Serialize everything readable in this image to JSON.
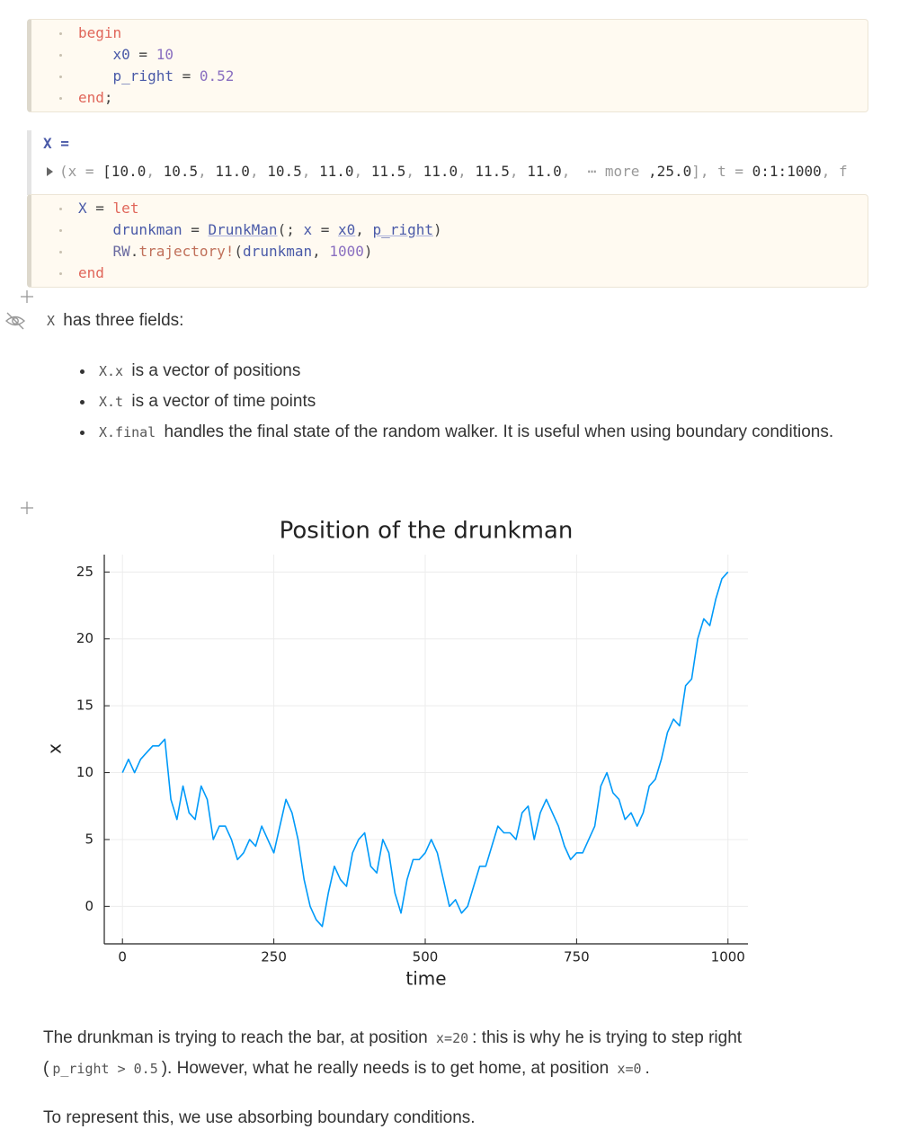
{
  "cells": [
    {
      "lines": [
        [
          {
            "text": "begin",
            "color": "#e0665a"
          }
        ],
        [
          {
            "text": "    x0",
            "color": "#4a5aa8"
          },
          {
            "text": " = "
          },
          {
            "text": "10",
            "color": "#8a6fc0"
          }
        ],
        [
          {
            "text": "    p_right",
            "color": "#4a5aa8"
          },
          {
            "text": " = "
          },
          {
            "text": "0.52",
            "color": "#8a6fc0"
          }
        ],
        [
          {
            "text": "end",
            "color": "#e0665a"
          },
          {
            "text": ";"
          }
        ]
      ]
    },
    {
      "lines": [
        [
          {
            "text": "X",
            "color": "#4a5aa8"
          },
          {
            "text": " = "
          },
          {
            "text": "let",
            "color": "#e0665a"
          }
        ],
        [
          {
            "text": "    drunkman",
            "color": "#4a5aa8"
          },
          {
            "text": " = "
          },
          {
            "text": "DrunkMan",
            "color": "#4a5aa8",
            "underline": true
          },
          {
            "text": "(; "
          },
          {
            "text": "x",
            "color": "#4a5aa8"
          },
          {
            "text": " = "
          },
          {
            "text": "x0",
            "color": "#4a5aa8",
            "underline": true
          },
          {
            "text": ", "
          },
          {
            "text": "p_right",
            "color": "#4a5aa8",
            "underline": true
          },
          {
            "text": ")"
          }
        ],
        [
          {
            "text": "    RW",
            "color": "#6a6aa0"
          },
          {
            "text": "."
          },
          {
            "text": "trajectory!",
            "color": "#c0705a"
          },
          {
            "text": "("
          },
          {
            "text": "drunkman",
            "color": "#4a5aa8"
          },
          {
            "text": ", "
          },
          {
            "text": "1000",
            "color": "#8a6fc0"
          },
          {
            "text": ")"
          }
        ],
        [
          {
            "text": "end",
            "color": "#e0665a"
          }
        ]
      ]
    }
  ],
  "output": {
    "label": "X =",
    "tokens": [
      {
        "text": "(x = ",
        "color": "#999999"
      },
      {
        "text": "[10.0",
        "color": "#333333"
      },
      {
        "text": ", ",
        "color": "#999999"
      },
      {
        "text": "10.5",
        "color": "#333333"
      },
      {
        "text": ", ",
        "color": "#999999"
      },
      {
        "text": "11.0",
        "color": "#333333"
      },
      {
        "text": ", ",
        "color": "#999999"
      },
      {
        "text": "10.5",
        "color": "#333333"
      },
      {
        "text": ", ",
        "color": "#999999"
      },
      {
        "text": "11.0",
        "color": "#333333"
      },
      {
        "text": ", ",
        "color": "#999999"
      },
      {
        "text": "11.5",
        "color": "#333333"
      },
      {
        "text": ", ",
        "color": "#999999"
      },
      {
        "text": "11.0",
        "color": "#333333"
      },
      {
        "text": ", ",
        "color": "#999999"
      },
      {
        "text": "11.5",
        "color": "#333333"
      },
      {
        "text": ", ",
        "color": "#999999"
      },
      {
        "text": "11.0",
        "color": "#333333"
      },
      {
        "text": ",  ⋯ more ",
        "color": "#999999"
      },
      {
        "text": ",25.0",
        "color": "#333333"
      },
      {
        "text": "], t = ",
        "color": "#999999"
      },
      {
        "text": "0:1:1000",
        "color": "#333333"
      },
      {
        "text": ", f",
        "color": "#999999"
      }
    ]
  },
  "markdown": {
    "intro": [
      {
        "text": "X",
        "code": true
      },
      {
        "text": " has three fields:"
      }
    ],
    "bullets": [
      [
        {
          "text": "X.x",
          "code": true
        },
        {
          "text": " is a vector of positions"
        }
      ],
      [
        {
          "text": "X.t",
          "code": true
        },
        {
          "text": " is a vector of time points"
        }
      ],
      [
        {
          "text": "X.final",
          "code": true
        },
        {
          "text": " handles the final state of the random walker. It is useful when using boundary conditions."
        }
      ]
    ]
  },
  "chart_data": {
    "type": "line",
    "title": "Position of the drunkman",
    "x_label": "time",
    "y_label": "x",
    "color": "#009af9",
    "grid": true,
    "xlim": [
      -30,
      1033
    ],
    "ylim": [
      -2.8,
      26.3
    ],
    "xticks": [
      0,
      250,
      500,
      750,
      1000
    ],
    "yticks": [
      0,
      5,
      10,
      15,
      20,
      25
    ],
    "x": [
      0,
      10,
      20,
      30,
      40,
      50,
      60,
      70,
      80,
      90,
      100,
      110,
      120,
      130,
      140,
      150,
      160,
      170,
      180,
      190,
      200,
      210,
      220,
      230,
      240,
      250,
      260,
      270,
      280,
      290,
      300,
      310,
      320,
      330,
      340,
      350,
      360,
      370,
      380,
      390,
      400,
      410,
      420,
      430,
      440,
      450,
      460,
      470,
      480,
      490,
      500,
      510,
      520,
      530,
      540,
      550,
      560,
      570,
      580,
      590,
      600,
      610,
      620,
      630,
      640,
      650,
      660,
      670,
      680,
      690,
      700,
      710,
      720,
      730,
      740,
      750,
      760,
      770,
      780,
      790,
      800,
      810,
      820,
      830,
      840,
      850,
      860,
      870,
      880,
      890,
      900,
      910,
      920,
      930,
      940,
      950,
      960,
      970,
      980,
      990,
      1000
    ],
    "values": [
      10,
      11,
      10,
      11,
      11.5,
      12,
      12,
      12.5,
      8,
      6.5,
      9,
      7,
      6.5,
      9,
      8,
      5,
      6,
      6,
      5,
      3.5,
      4,
      5,
      4.5,
      6,
      5,
      4,
      6,
      8,
      7,
      5,
      2,
      0,
      -1,
      -1.5,
      1,
      3,
      2,
      1.5,
      4,
      5,
      5.5,
      3,
      2.5,
      5,
      4,
      1,
      -0.5,
      2,
      3.5,
      3.5,
      4,
      5,
      4,
      2,
      0,
      0.5,
      -0.5,
      0,
      1.5,
      3,
      3,
      4.5,
      6,
      5.5,
      5.5,
      5,
      7,
      7.5,
      5,
      7,
      8,
      7,
      6,
      4.5,
      3.5,
      4,
      4,
      5,
      6,
      9,
      10,
      8.5,
      8,
      6.5,
      7,
      6,
      7,
      9,
      9.5,
      11,
      13,
      14,
      13.5,
      16.5,
      17,
      20,
      21.5,
      21,
      23,
      24.5,
      25
    ]
  },
  "text": {
    "paragraphs": [
      [
        {
          "text": "The drunkman is trying to reach the bar, at position "
        },
        {
          "text": "x=20",
          "code": true
        },
        {
          "text": ": this is why he is trying to step right ("
        },
        {
          "text": "p_right > 0.5",
          "code": true
        },
        {
          "text": "). However, what he really needs is to get home, at position "
        },
        {
          "text": "x=0",
          "code": true
        },
        {
          "text": "."
        }
      ],
      [
        {
          "text": "To represent this, we use absorbing boundary conditions."
        }
      ]
    ]
  }
}
